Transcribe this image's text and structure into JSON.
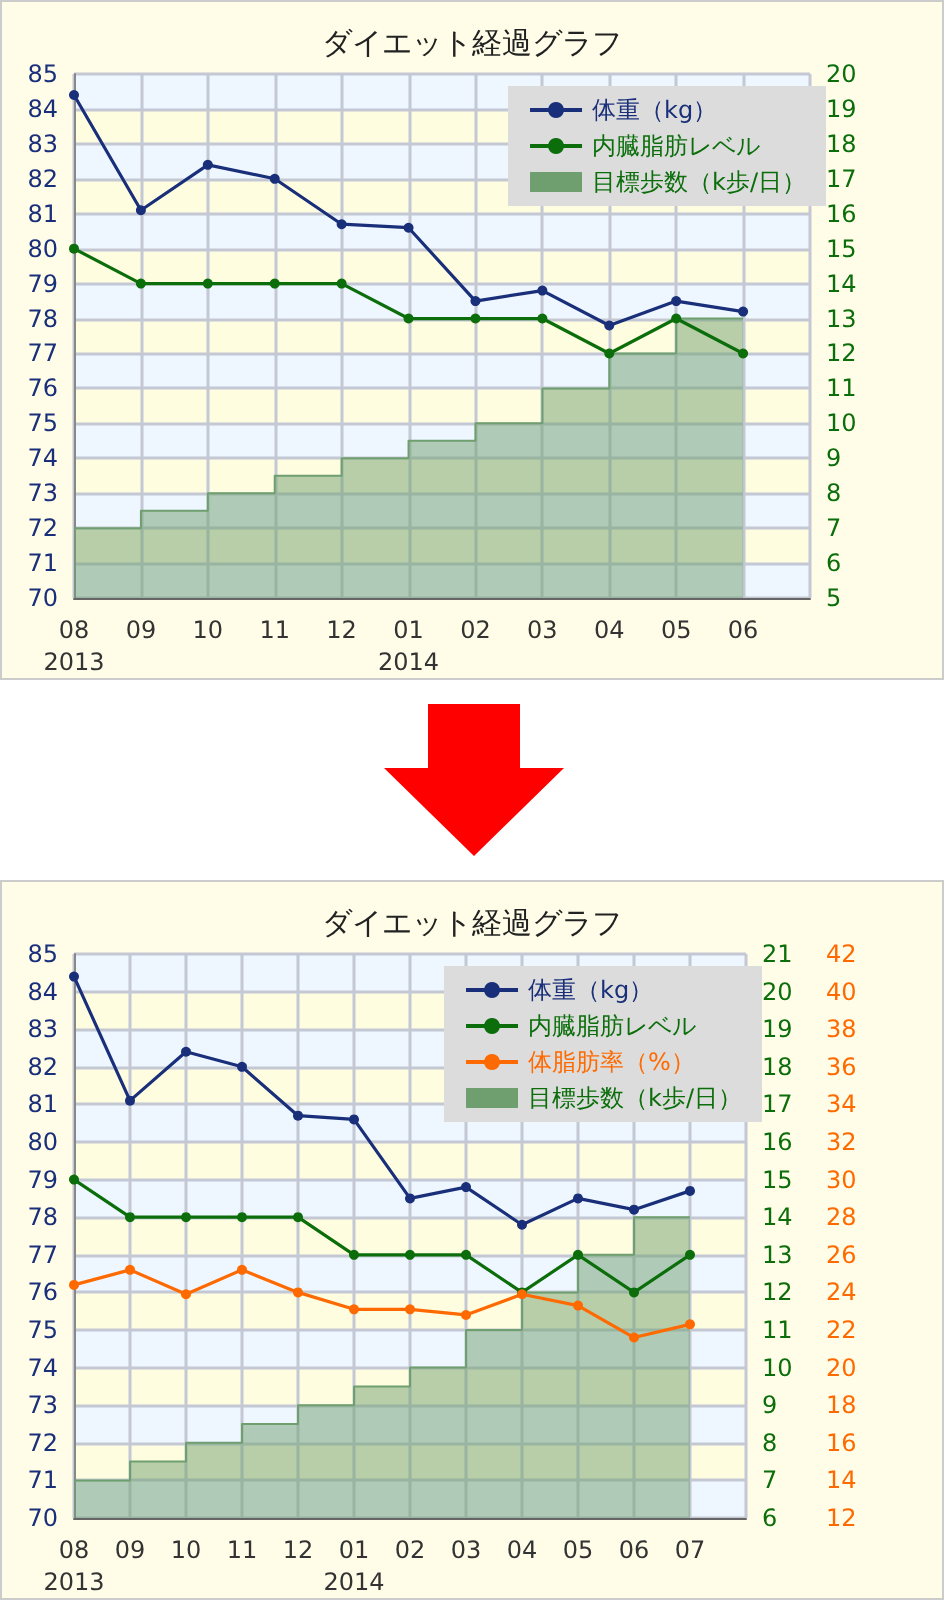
{
  "chart_data": [
    {
      "type": "line",
      "title": "ダイエット経過グラフ",
      "categories": [
        "08\n2013",
        "09",
        "10",
        "11",
        "12",
        "01\n2014",
        "02",
        "03",
        "04",
        "05",
        "06",
        null
      ],
      "series": [
        {
          "name": "体重（kg）",
          "color": "#1a2f7a",
          "values": [
            84.4,
            81.1,
            82.4,
            82.0,
            80.7,
            80.6,
            78.5,
            78.8,
            77.8,
            78.5,
            78.2,
            null
          ]
        },
        {
          "name": "内臓脂肪レベル",
          "color": "#0b6e0b",
          "axis": "y2",
          "values": [
            15,
            14,
            14,
            14,
            14,
            13,
            13,
            13,
            12,
            13,
            12,
            null
          ]
        },
        {
          "name": "目標歩数（k歩/日）",
          "color": "#6f9f6f",
          "type": "area",
          "axis": "y2",
          "marker": "none",
          "x": [
            "08\n2013",
            "09",
            "09",
            "10",
            "10",
            "11",
            "11",
            "12",
            "12",
            "01\n2014",
            "01\n2014",
            "02",
            "02",
            "03",
            "03",
            "04",
            "04",
            "05",
            "05",
            "06"
          ],
          "values": [
            7,
            7,
            7.5,
            7.5,
            8,
            8,
            8.5,
            8.5,
            9,
            9,
            9.5,
            9.5,
            10,
            10,
            11,
            11,
            12,
            12,
            13,
            13
          ]
        }
      ],
      "ylim": [
        70,
        85
      ],
      "yticks": [
        70,
        71,
        72,
        73,
        74,
        75,
        76,
        77,
        78,
        79,
        80,
        81,
        82,
        83,
        84,
        85
      ],
      "y2lim": [
        5,
        20
      ],
      "y2ticks": [
        5,
        6,
        7,
        8,
        9,
        10,
        11,
        12,
        13,
        14,
        15,
        16,
        17,
        18,
        19,
        20
      ],
      "grid": true,
      "legend": "top right",
      "marker": "circle"
    },
    {
      "type": "line",
      "title": "ダイエット経過グラフ",
      "categories": [
        "08\n2013",
        "09",
        "10",
        "11",
        "12",
        "01\n2014",
        "02",
        "03",
        "04",
        "05",
        "06",
        "07",
        null
      ],
      "series": [
        {
          "name": "体重（kg）",
          "color": "#1a2f7a",
          "values": [
            84.4,
            81.1,
            82.4,
            82.0,
            80.7,
            80.6,
            78.5,
            78.8,
            77.8,
            78.5,
            78.2,
            78.7,
            null
          ]
        },
        {
          "name": "内臓脂肪レベル",
          "color": "#0b6e0b",
          "axis": "y2",
          "values": [
            15,
            14,
            14,
            14,
            14,
            13,
            13,
            13,
            12,
            13,
            12,
            13,
            null
          ]
        },
        {
          "name": "体脂肪率（%）",
          "color": "#ff6a00",
          "axis": "y3",
          "values": [
            24.4,
            25.2,
            23.9,
            25.2,
            24.0,
            23.1,
            23.1,
            22.8,
            23.9,
            23.3,
            21.6,
            22.3,
            null
          ]
        },
        {
          "name": "目標歩数（k歩/日）",
          "color": "#6f9f6f",
          "type": "area",
          "axis": "y2",
          "marker": "none",
          "x": [
            "08\n2013",
            "09",
            "09",
            "10",
            "10",
            "11",
            "11",
            "12",
            "12",
            "01\n2014",
            "01\n2014",
            "02",
            "02",
            "03",
            "03",
            "04",
            "04",
            "05",
            "05",
            "06",
            "06",
            "07"
          ],
          "values": [
            7,
            7,
            7.5,
            7.5,
            8,
            8,
            8.5,
            8.5,
            9,
            9,
            9.5,
            9.5,
            10,
            10,
            11,
            11,
            12,
            12,
            13,
            13,
            14,
            14
          ]
        }
      ],
      "ylim": [
        70,
        85
      ],
      "yticks": [
        70,
        71,
        72,
        73,
        74,
        75,
        76,
        77,
        78,
        79,
        80,
        81,
        82,
        83,
        84,
        85
      ],
      "y2lim": [
        6,
        21
      ],
      "y2ticks": [
        6,
        7,
        8,
        9,
        10,
        11,
        12,
        13,
        14,
        15,
        16,
        17,
        18,
        19,
        20,
        21
      ],
      "y3lim": [
        12,
        42
      ],
      "y3ticks": [
        12,
        14,
        16,
        18,
        20,
        22,
        24,
        26,
        28,
        30,
        32,
        34,
        36,
        38,
        40,
        42
      ],
      "grid": true,
      "legend": "top right",
      "marker": "circle"
    }
  ]
}
